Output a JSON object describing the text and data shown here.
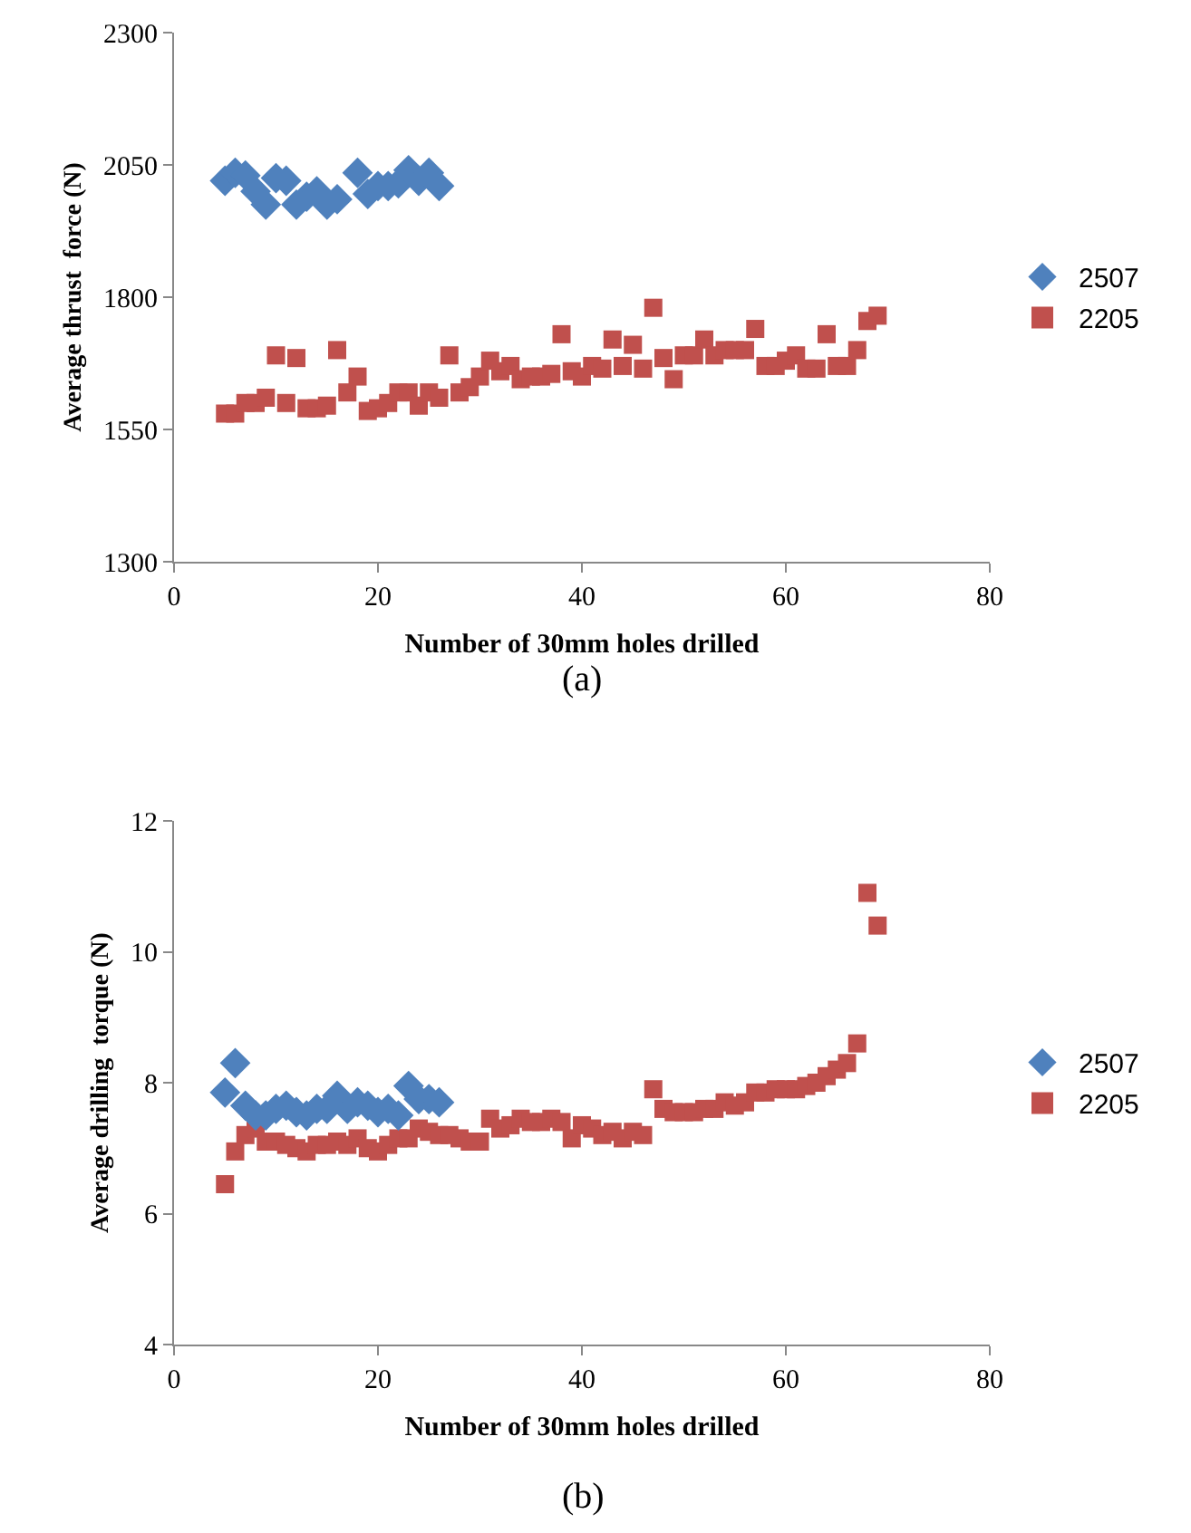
{
  "chart_data": [
    {
      "type": "scatter",
      "xlabel": "Number of 30mm holes drilled",
      "ylabel": "Average thrust  force (N)",
      "xlim": [
        0,
        80
      ],
      "xticks": [
        0,
        20,
        40,
        60,
        80
      ],
      "ylim": [
        1300,
        2300
      ],
      "yticks": [
        1300,
        1550,
        1800,
        2050,
        2300
      ],
      "grid": false,
      "legend": "right",
      "annotations": [
        "(a)"
      ],
      "series": [
        {
          "name": "2507",
          "color": "#4f81bd",
          "marker": "diamond",
          "x": [
            5,
            6,
            7,
            8,
            9,
            10,
            11,
            12,
            13,
            14,
            15,
            16,
            18,
            19,
            20,
            21,
            22,
            23,
            24,
            25,
            26
          ],
          "values": [
            2020,
            2035,
            2030,
            2000,
            1975,
            2025,
            2020,
            1975,
            1990,
            2000,
            1975,
            1985,
            2035,
            1995,
            2010,
            2010,
            2015,
            2040,
            2020,
            2035,
            2010
          ]
        },
        {
          "name": "2205",
          "color": "#c0504d",
          "marker": "square",
          "x": [
            5,
            6,
            7,
            8,
            9,
            10,
            11,
            12,
            13,
            14,
            15,
            16,
            17,
            18,
            19,
            20,
            21,
            22,
            23,
            24,
            25,
            26,
            27,
            28,
            29,
            30,
            31,
            32,
            33,
            34,
            35,
            36,
            37,
            38,
            39,
            40,
            41,
            42,
            43,
            44,
            45,
            46,
            47,
            48,
            49,
            50,
            51,
            52,
            53,
            54,
            55,
            56,
            57,
            58,
            59,
            60,
            61,
            62,
            63,
            64,
            65,
            66,
            67,
            68,
            69
          ],
          "values": [
            1580,
            1580,
            1600,
            1600,
            1610,
            1690,
            1600,
            1685,
            1590,
            1590,
            1595,
            1700,
            1620,
            1650,
            1585,
            1590,
            1600,
            1620,
            1620,
            1595,
            1620,
            1610,
            1690,
            1620,
            1630,
            1650,
            1680,
            1660,
            1670,
            1645,
            1650,
            1650,
            1655,
            1730,
            1660,
            1650,
            1670,
            1665,
            1720,
            1670,
            1710,
            1665,
            1780,
            1685,
            1645,
            1690,
            1690,
            1720,
            1690,
            1700,
            1700,
            1700,
            1740,
            1670,
            1670,
            1680,
            1690,
            1665,
            1665,
            1730,
            1670,
            1670,
            1700,
            1755,
            1765
          ]
        }
      ]
    },
    {
      "type": "scatter",
      "xlabel": "Number of 30mm holes drilled",
      "ylabel": "Average drilling  torque (N)",
      "xlim": [
        0,
        80
      ],
      "xticks": [
        0,
        20,
        40,
        60,
        80
      ],
      "ylim": [
        4,
        12
      ],
      "yticks": [
        4,
        6,
        8,
        10,
        12
      ],
      "grid": false,
      "legend": "right",
      "annotations": [
        "(b)"
      ],
      "series": [
        {
          "name": "2507",
          "color": "#4f81bd",
          "marker": "diamond",
          "x": [
            5,
            6,
            7,
            8,
            9,
            10,
            11,
            12,
            13,
            14,
            15,
            16,
            17,
            18,
            19,
            20,
            21,
            22,
            23,
            24,
            25,
            26
          ],
          "values": [
            7.85,
            8.3,
            7.65,
            7.5,
            7.5,
            7.6,
            7.65,
            7.55,
            7.5,
            7.6,
            7.6,
            7.8,
            7.6,
            7.7,
            7.65,
            7.55,
            7.6,
            7.5,
            7.95,
            7.75,
            7.75,
            7.7
          ]
        },
        {
          "name": "2205",
          "color": "#c0504d",
          "marker": "square",
          "x": [
            5,
            6,
            7,
            8,
            9,
            10,
            11,
            12,
            13,
            14,
            15,
            16,
            17,
            18,
            19,
            20,
            21,
            22,
            23,
            24,
            25,
            26,
            27,
            28,
            29,
            30,
            31,
            32,
            33,
            34,
            35,
            36,
            37,
            38,
            39,
            40,
            41,
            42,
            43,
            44,
            45,
            46,
            47,
            48,
            49,
            50,
            51,
            52,
            53,
            54,
            55,
            56,
            57,
            58,
            59,
            60,
            61,
            62,
            63,
            64,
            65,
            66,
            67,
            68,
            69
          ],
          "values": [
            6.45,
            6.95,
            7.2,
            7.3,
            7.1,
            7.1,
            7.05,
            7.0,
            6.95,
            7.05,
            7.05,
            7.1,
            7.05,
            7.15,
            7.0,
            6.95,
            7.05,
            7.15,
            7.15,
            7.3,
            7.25,
            7.2,
            7.2,
            7.15,
            7.1,
            7.1,
            7.45,
            7.3,
            7.35,
            7.45,
            7.4,
            7.4,
            7.45,
            7.4,
            7.15,
            7.35,
            7.3,
            7.2,
            7.25,
            7.15,
            7.25,
            7.2,
            7.9,
            7.6,
            7.55,
            7.55,
            7.55,
            7.6,
            7.6,
            7.7,
            7.65,
            7.7,
            7.85,
            7.85,
            7.9,
            7.9,
            7.9,
            7.95,
            8.0,
            8.1,
            8.2,
            8.3,
            8.6,
            10.9,
            10.4
          ]
        }
      ]
    }
  ]
}
